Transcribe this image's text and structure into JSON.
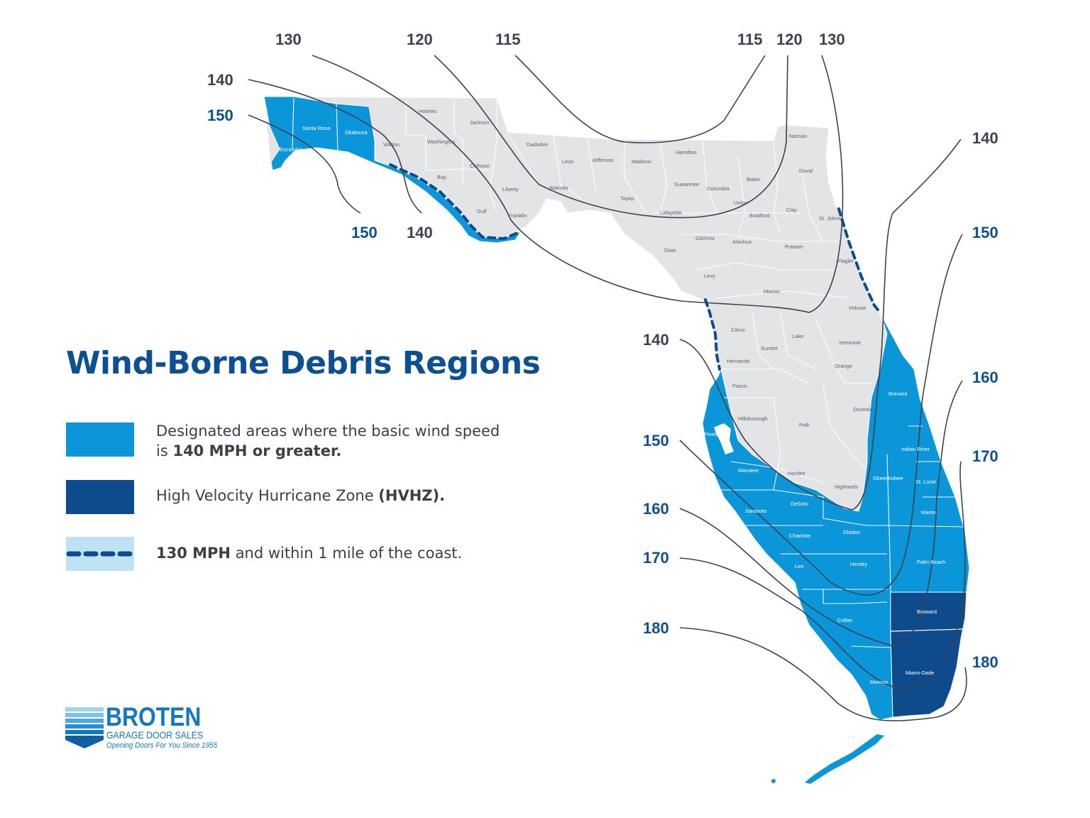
{
  "title": "Wind-Borne Debris Regions",
  "legend": [
    {
      "pre": "Designated areas where the basic wind speed",
      "line2_pre": "is ",
      "bold": "140 MPH or greater.",
      "post": ""
    },
    {
      "pre": "High Velocity Hurricane Zone ",
      "bold": "(HVHZ).",
      "post": ""
    },
    {
      "pre": "",
      "bold": "130 MPH",
      "post": " and within 1 mile of the coast."
    }
  ],
  "colors": {
    "wbdr": "#0a96d8",
    "hvhz": "#0e4b8c",
    "land": "#e3e4e6",
    "coast_dash_bg": "#bfe3f5",
    "contour": "#3c4350",
    "label_dark": "#3c4350",
    "label_blue": "#0d4f93"
  },
  "contour_labels": [
    {
      "text": "130",
      "color": "dark"
    },
    {
      "text": "120",
      "color": "dark"
    },
    {
      "text": "115",
      "color": "dark"
    },
    {
      "text": "115",
      "color": "dark"
    },
    {
      "text": "120",
      "color": "dark"
    },
    {
      "text": "130",
      "color": "dark"
    },
    {
      "text": "140",
      "color": "dark"
    },
    {
      "text": "150",
      "color": "blue"
    },
    {
      "text": "150",
      "color": "blue"
    },
    {
      "text": "140",
      "color": "dark"
    },
    {
      "text": "140",
      "color": "dark"
    },
    {
      "text": "150",
      "color": "blue"
    },
    {
      "text": "160",
      "color": "blue"
    },
    {
      "text": "170",
      "color": "blue"
    },
    {
      "text": "180",
      "color": "blue"
    },
    {
      "text": "140",
      "color": "dark"
    },
    {
      "text": "150",
      "color": "blue"
    },
    {
      "text": "160",
      "color": "blue"
    },
    {
      "text": "170",
      "color": "blue"
    },
    {
      "text": "180",
      "color": "blue"
    }
  ],
  "counties": [
    {
      "name": "Holmes"
    },
    {
      "name": "Jackson"
    },
    {
      "name": "Santa Rosa"
    },
    {
      "name": "Okaloosa"
    },
    {
      "name": "Escambia"
    },
    {
      "name": "Walton"
    },
    {
      "name": "Washington"
    },
    {
      "name": "Gadsden"
    },
    {
      "name": "Hamilton"
    },
    {
      "name": "Nassau"
    },
    {
      "name": "Leon"
    },
    {
      "name": "Jefferson"
    },
    {
      "name": "Madison"
    },
    {
      "name": "Calhoun"
    },
    {
      "name": "Bay"
    },
    {
      "name": "Duval"
    },
    {
      "name": "Liberty"
    },
    {
      "name": "Wakulla"
    },
    {
      "name": "Baker"
    },
    {
      "name": "Suwannee"
    },
    {
      "name": "Columbia"
    },
    {
      "name": "Taylor"
    },
    {
      "name": "Union"
    },
    {
      "name": "Gulf"
    },
    {
      "name": "Franklin"
    },
    {
      "name": "Lafayette"
    },
    {
      "name": "Bradford"
    },
    {
      "name": "Clay"
    },
    {
      "name": "St. Johns"
    },
    {
      "name": "Gilchrist"
    },
    {
      "name": "Alachua"
    },
    {
      "name": "Dixie"
    },
    {
      "name": "Putnam"
    },
    {
      "name": "Flagler"
    },
    {
      "name": "Levy"
    },
    {
      "name": "Marion"
    },
    {
      "name": "Volusia"
    },
    {
      "name": "Citrus"
    },
    {
      "name": "Lake"
    },
    {
      "name": "Sumter"
    },
    {
      "name": "Seminole"
    },
    {
      "name": "Hernando"
    },
    {
      "name": "Orange"
    },
    {
      "name": "Pasco"
    },
    {
      "name": "Brevard"
    },
    {
      "name": "Osceola"
    },
    {
      "name": "Hillsborough"
    },
    {
      "name": "Pinellas"
    },
    {
      "name": "Polk"
    },
    {
      "name": "Indian River"
    },
    {
      "name": "Manatee"
    },
    {
      "name": "Hardee"
    },
    {
      "name": "Okeechobee"
    },
    {
      "name": "St. Lucie"
    },
    {
      "name": "Highlands"
    },
    {
      "name": "Sarasota"
    },
    {
      "name": "DeSoto"
    },
    {
      "name": "Martin"
    },
    {
      "name": "Charlotte"
    },
    {
      "name": "Glades"
    },
    {
      "name": "Palm Beach"
    },
    {
      "name": "Lee"
    },
    {
      "name": "Hendry"
    },
    {
      "name": "Broward"
    },
    {
      "name": "Collier"
    },
    {
      "name": "Miami-Dade"
    },
    {
      "name": "Monroe"
    }
  ],
  "logo": {
    "name": "BROTEN",
    "subtitle": "GARAGE DOOR SALES",
    "tagline": "Opening Doors For You Since 1955"
  }
}
